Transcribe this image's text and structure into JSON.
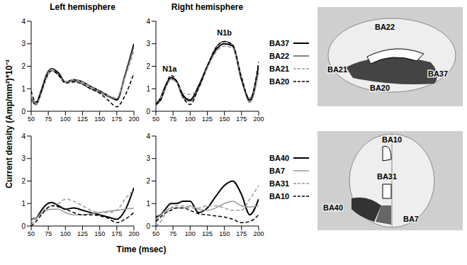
{
  "chart_data": [
    {
      "type": "line",
      "title": "Left hemisphere",
      "x": [
        50,
        57,
        65,
        72,
        80,
        90,
        100,
        112,
        125,
        137,
        150,
        162,
        175,
        187,
        200
      ],
      "xlim": [
        50,
        200
      ],
      "xticks": [
        50,
        75,
        100,
        125,
        150,
        175,
        200
      ],
      "ylim": [
        0,
        4
      ],
      "yticks": [
        0,
        1,
        2,
        3,
        4
      ],
      "series": [
        {
          "name": "BA37",
          "color": "#000000",
          "line_style": "solid",
          "values": [
            0.5,
            0.3,
            0.9,
            1.6,
            1.9,
            1.7,
            1.3,
            1.4,
            1.3,
            1.1,
            0.9,
            0.7,
            0.5,
            1.6,
            3.0
          ]
        },
        {
          "name": "BA22",
          "color": "#555555",
          "line_style": "solid",
          "values": [
            0.6,
            0.4,
            1.0,
            1.6,
            1.9,
            1.6,
            1.3,
            1.35,
            1.2,
            1.0,
            0.85,
            0.65,
            0.55,
            1.6,
            2.9
          ]
        },
        {
          "name": "BA21",
          "color": "#999999",
          "line_style": "dashed",
          "values": [
            0.5,
            0.3,
            0.8,
            1.4,
            1.8,
            1.6,
            1.3,
            1.4,
            1.3,
            1.1,
            0.9,
            0.7,
            0.6,
            1.5,
            2.7
          ]
        },
        {
          "name": "BA20",
          "color": "#000000",
          "line_style": "dashed",
          "values": [
            0.9,
            0.4,
            0.9,
            1.5,
            1.8,
            1.6,
            1.25,
            1.3,
            1.2,
            1.0,
            0.8,
            0.5,
            0.2,
            0.7,
            1.7
          ]
        }
      ]
    },
    {
      "type": "line",
      "title": "Right hemisphere",
      "legend": "right",
      "x": [
        50,
        57,
        65,
        72,
        80,
        90,
        100,
        112,
        125,
        137,
        150,
        162,
        175,
        187,
        200
      ],
      "xlim": [
        50,
        200
      ],
      "xticks": [
        50,
        75,
        100,
        125,
        150,
        175,
        200
      ],
      "ylim": [
        0,
        4
      ],
      "yticks": [
        0,
        1,
        2,
        3,
        4
      ],
      "annotations": [
        {
          "text": "N1a",
          "x": 70,
          "y": 1.6
        },
        {
          "text": "N1b",
          "x": 150,
          "y": 3.2
        }
      ],
      "series": [
        {
          "name": "BA37",
          "color": "#000000",
          "line_style": "solid",
          "values": [
            0.3,
            0.6,
            1.2,
            1.5,
            1.35,
            0.7,
            0.5,
            1.1,
            2.0,
            2.7,
            3.0,
            2.9,
            1.4,
            0.5,
            2.0
          ]
        },
        {
          "name": "BA22",
          "color": "#555555",
          "line_style": "solid",
          "values": [
            0.3,
            0.5,
            1.1,
            1.45,
            1.3,
            0.6,
            0.45,
            1.0,
            2.0,
            2.8,
            3.1,
            2.95,
            1.5,
            0.4,
            1.8
          ]
        },
        {
          "name": "BA21",
          "color": "#999999",
          "line_style": "dashed",
          "values": [
            0.4,
            0.6,
            1.1,
            1.4,
            1.3,
            0.8,
            0.75,
            1.0,
            1.9,
            2.6,
            2.9,
            2.8,
            1.5,
            0.6,
            1.8
          ]
        },
        {
          "name": "BA20",
          "color": "#000000",
          "line_style": "dashed",
          "values": [
            0.3,
            0.5,
            1.2,
            1.6,
            1.35,
            0.6,
            0.3,
            1.0,
            2.0,
            2.8,
            3.1,
            2.95,
            1.5,
            0.5,
            2.2
          ]
        }
      ]
    },
    {
      "type": "line",
      "x": [
        50,
        57,
        65,
        72,
        80,
        90,
        100,
        112,
        125,
        137,
        150,
        162,
        175,
        187,
        200
      ],
      "xlim": [
        50,
        200
      ],
      "xticks": [
        50,
        75,
        100,
        125,
        150,
        175,
        200
      ],
      "ylim": [
        0,
        4
      ],
      "yticks": [
        0,
        1,
        2,
        3,
        4
      ],
      "series": [
        {
          "name": "BA40",
          "color": "#000000",
          "line_style": "solid",
          "values": [
            0.3,
            0.35,
            0.7,
            0.95,
            1.05,
            0.9,
            0.75,
            0.8,
            0.7,
            0.6,
            0.5,
            0.4,
            0.3,
            0.7,
            1.7
          ]
        },
        {
          "name": "BA7",
          "color": "#999999",
          "line_style": "solid",
          "values": [
            0.3,
            0.35,
            0.55,
            0.7,
            0.75,
            0.75,
            0.6,
            0.5,
            0.5,
            0.55,
            0.6,
            0.65,
            0.7,
            0.75,
            0.8
          ]
        },
        {
          "name": "BA31",
          "color": "#999999",
          "line_style": "dashed",
          "values": [
            0.1,
            0.3,
            0.6,
            0.8,
            0.9,
            1.0,
            1.2,
            1.1,
            0.9,
            0.7,
            0.6,
            0.6,
            0.7,
            1.2,
            1.6
          ]
        },
        {
          "name": "BA10",
          "color": "#000000",
          "line_style": "dashed",
          "values": [
            0.0,
            0.2,
            0.5,
            0.75,
            0.9,
            0.85,
            0.75,
            0.6,
            0.5,
            0.5,
            0.45,
            0.35,
            0.15,
            0.3,
            0.6
          ]
        }
      ]
    },
    {
      "type": "line",
      "legend": "right",
      "x": [
        50,
        57,
        65,
        72,
        80,
        90,
        100,
        112,
        125,
        137,
        150,
        162,
        175,
        187,
        200
      ],
      "xlim": [
        50,
        200
      ],
      "xticks": [
        50,
        75,
        100,
        125,
        150,
        175,
        200
      ],
      "ylim": [
        0,
        4
      ],
      "yticks": [
        0,
        1,
        2,
        3,
        4
      ],
      "series": [
        {
          "name": "BA40",
          "color": "#000000",
          "line_style": "solid",
          "values": [
            0.4,
            0.5,
            0.8,
            1.0,
            1.0,
            1.1,
            1.1,
            0.6,
            0.8,
            1.3,
            1.8,
            2.0,
            1.4,
            0.5,
            1.2
          ]
        },
        {
          "name": "BA7",
          "color": "#999999",
          "line_style": "solid",
          "values": [
            0.3,
            0.5,
            0.7,
            0.8,
            0.8,
            0.8,
            0.9,
            0.75,
            0.7,
            0.8,
            1.0,
            1.1,
            0.9,
            0.85,
            0.9
          ]
        },
        {
          "name": "BA31",
          "color": "#999999",
          "line_style": "dashed",
          "values": [
            0.0,
            0.2,
            0.6,
            0.8,
            0.9,
            0.9,
            0.8,
            0.8,
            0.9,
            0.9,
            0.8,
            0.7,
            0.7,
            1.2,
            1.8
          ]
        },
        {
          "name": "BA10",
          "color": "#000000",
          "line_style": "dashed",
          "values": [
            0.2,
            0.4,
            0.6,
            0.7,
            0.8,
            0.8,
            0.7,
            0.55,
            0.5,
            0.45,
            0.4,
            0.3,
            0.15,
            0.2,
            0.5
          ]
        }
      ]
    }
  ],
  "y_axis_title": "Current density (Amp/mm²)*10⁻³",
  "x_axis_title": "Time (msec)",
  "region_labels": [
    [
      "BA22",
      "BA21",
      "BA20",
      "BA37"
    ],
    [
      "BA10",
      "BA31",
      "BA40",
      "BA7"
    ]
  ]
}
